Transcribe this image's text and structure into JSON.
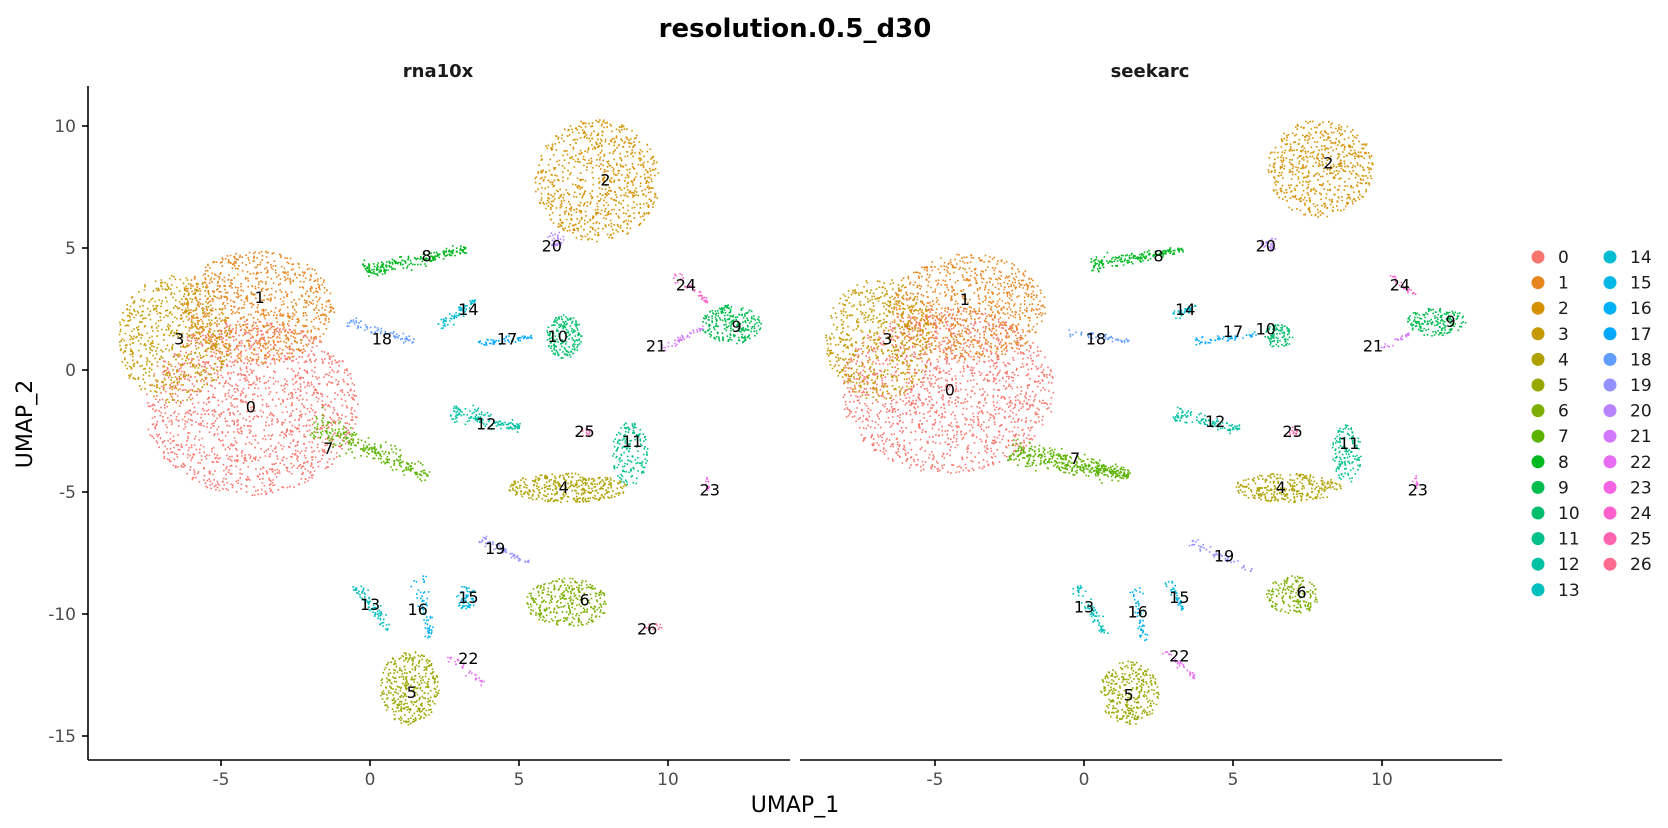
{
  "chart_data": {
    "type": "scatter",
    "title": "resolution.0.5_d30",
    "xlabel": "UMAP_1",
    "ylabel": "UMAP_2",
    "xlim": [
      -9.5,
      14
    ],
    "ylim": [
      -16.5,
      11.5
    ],
    "x_ticks": [
      -5,
      0,
      5,
      10
    ],
    "y_ticks": [
      10,
      5,
      0,
      -5,
      -10,
      -15
    ],
    "grid": false,
    "legend_position": "right",
    "legend_columns": 2,
    "cluster_colors": [
      "#F8766D",
      "#EA8331",
      "#D89000",
      "#C09B00",
      "#A3A500",
      "#7CAE00",
      "#39B600",
      "#00BB4E",
      "#00BF7D",
      "#00C1A3",
      "#00BFC4",
      "#00BAE0",
      "#00B0F6",
      "#35A2FF",
      "#9590FF",
      "#C77CFF",
      "#E76BF3",
      "#FA62DB",
      "#FF62BC",
      "#FF6C91",
      "#F8766D",
      "#E58700",
      "#C99800",
      "#A3A500",
      "#6BB100",
      "#00BA38",
      "#00BF7D"
    ],
    "legend": [
      "0",
      "1",
      "2",
      "3",
      "4",
      "5",
      "6",
      "7",
      "8",
      "9",
      "10",
      "11",
      "12",
      "13",
      "14",
      "15",
      "16",
      "17",
      "18",
      "19",
      "20",
      "21",
      "22",
      "23",
      "24",
      "25",
      "26"
    ],
    "legend_colors": [
      "#F8766D",
      "#E7851E",
      "#D69100",
      "#C49A00",
      "#AFA100",
      "#99A800",
      "#7CAE00",
      "#5BB300",
      "#00B81F",
      "#00BB4E",
      "#00BE6C",
      "#00C089",
      "#00C1A3",
      "#00BFBC",
      "#00BCD2",
      "#00B7E6",
      "#00B0F6",
      "#00A7FF",
      "#619CFF",
      "#9590FF",
      "#B983FF",
      "#D377FF",
      "#E76BF3",
      "#F564E3",
      "#FF61CC",
      "#FF64B0",
      "#FF6C91"
    ],
    "facets": [
      {
        "name": "rna10x",
        "clusters": [
          {
            "id": "0",
            "label_x": -4.0,
            "label_y": -1.5,
            "shape": "blob",
            "cx": -4.0,
            "cy": -1.5,
            "rx": 3.6,
            "ry": 3.6,
            "n": 1600
          },
          {
            "id": "1",
            "label_x": -3.7,
            "label_y": 3.0,
            "shape": "blob",
            "cx": -3.8,
            "cy": 2.6,
            "rx": 2.6,
            "ry": 2.3,
            "n": 900
          },
          {
            "id": "3",
            "label_x": -6.4,
            "label_y": 1.3,
            "shape": "blob",
            "cx": -6.6,
            "cy": 1.3,
            "rx": 1.9,
            "ry": 2.6,
            "n": 650
          },
          {
            "id": "2",
            "label_x": 7.9,
            "label_y": 7.8,
            "shape": "blob",
            "cx": 7.6,
            "cy": 7.8,
            "rx": 2.1,
            "ry": 2.5,
            "n": 800
          },
          {
            "id": "8",
            "label_x": 1.9,
            "label_y": 4.7,
            "shape": "streak",
            "x1": -0.2,
            "y1": 4.1,
            "x2": 3.2,
            "y2": 5.0,
            "w": 0.35,
            "n": 220
          },
          {
            "id": "20",
            "label_x": 6.1,
            "label_y": 5.1,
            "shape": "blob",
            "cx": 6.2,
            "cy": 5.4,
            "rx": 0.3,
            "ry": 0.3,
            "n": 30
          },
          {
            "id": "14",
            "label_x": 3.3,
            "label_y": 2.5,
            "shape": "streak",
            "x1": 2.3,
            "y1": 1.8,
            "x2": 3.5,
            "y2": 2.9,
            "w": 0.25,
            "n": 70
          },
          {
            "id": "18",
            "label_x": 0.4,
            "label_y": 1.3,
            "shape": "streak",
            "x1": -0.8,
            "y1": 2.0,
            "x2": 1.5,
            "y2": 1.2,
            "w": 0.25,
            "n": 70
          },
          {
            "id": "17",
            "label_x": 4.6,
            "label_y": 1.3,
            "shape": "streak",
            "x1": 3.6,
            "y1": 1.1,
            "x2": 5.4,
            "y2": 1.4,
            "w": 0.18,
            "n": 60
          },
          {
            "id": "10",
            "label_x": 6.3,
            "label_y": 1.4,
            "shape": "blob",
            "cx": 6.5,
            "cy": 1.4,
            "rx": 0.6,
            "ry": 0.9,
            "n": 180
          },
          {
            "id": "24",
            "label_x": 10.6,
            "label_y": 3.5,
            "shape": "streak",
            "x1": 10.2,
            "y1": 4.0,
            "x2": 11.3,
            "y2": 2.8,
            "w": 0.18,
            "n": 40
          },
          {
            "id": "21",
            "label_x": 9.6,
            "label_y": 1.0,
            "shape": "streak",
            "x1": 9.8,
            "y1": 0.9,
            "x2": 11.2,
            "y2": 1.8,
            "w": 0.18,
            "n": 40
          },
          {
            "id": "9",
            "label_x": 12.3,
            "label_y": 1.8,
            "shape": "blob",
            "cx": 12.1,
            "cy": 1.9,
            "rx": 1.0,
            "ry": 0.8,
            "n": 240
          },
          {
            "id": "7",
            "label_x": -1.4,
            "label_y": -3.2,
            "shape": "streak",
            "x1": -2.0,
            "y1": -2.2,
            "x2": 2.0,
            "y2": -4.3,
            "w": 0.6,
            "n": 260
          },
          {
            "id": "12",
            "label_x": 3.9,
            "label_y": -2.2,
            "shape": "streak",
            "x1": 2.7,
            "y1": -1.7,
            "x2": 5.0,
            "y2": -2.3,
            "w": 0.4,
            "n": 140
          },
          {
            "id": "25",
            "label_x": 7.2,
            "label_y": -2.5,
            "shape": "blob",
            "cx": 7.2,
            "cy": -2.5,
            "rx": 0.15,
            "ry": 0.2,
            "n": 12
          },
          {
            "id": "11",
            "label_x": 8.8,
            "label_y": -2.9,
            "shape": "blob",
            "cx": 8.7,
            "cy": -3.4,
            "rx": 0.6,
            "ry": 1.3,
            "n": 170
          },
          {
            "id": "4",
            "label_x": 6.5,
            "label_y": -4.8,
            "shape": "blob",
            "cx": 6.6,
            "cy": -4.8,
            "rx": 2.0,
            "ry": 0.6,
            "n": 360
          },
          {
            "id": "23",
            "label_x": 11.4,
            "label_y": -4.9,
            "shape": "blob",
            "cx": 11.3,
            "cy": -4.6,
            "rx": 0.1,
            "ry": 0.3,
            "n": 12
          },
          {
            "id": "19",
            "label_x": 4.2,
            "label_y": -7.3,
            "shape": "streak",
            "x1": 3.7,
            "y1": -6.9,
            "x2": 5.4,
            "y2": -7.9,
            "w": 0.2,
            "n": 60
          },
          {
            "id": "6",
            "label_x": 7.2,
            "label_y": -9.4,
            "shape": "blob",
            "cx": 6.6,
            "cy": -9.5,
            "rx": 1.4,
            "ry": 1.0,
            "n": 320
          },
          {
            "id": "26",
            "label_x": 9.3,
            "label_y": -10.6,
            "shape": "blob",
            "cx": 9.5,
            "cy": -10.5,
            "rx": 0.3,
            "ry": 0.15,
            "n": 14
          },
          {
            "id": "13",
            "label_x": 0.0,
            "label_y": -9.6,
            "shape": "streak",
            "x1": -0.5,
            "y1": -8.8,
            "x2": 0.6,
            "y2": -10.6,
            "w": 0.25,
            "n": 80
          },
          {
            "id": "16",
            "label_x": 1.6,
            "label_y": -9.8,
            "shape": "streak",
            "x1": 1.6,
            "y1": -8.4,
            "x2": 2.0,
            "y2": -11.0,
            "w": 0.25,
            "n": 60
          },
          {
            "id": "15",
            "label_x": 3.3,
            "label_y": -9.3,
            "shape": "blob",
            "cx": 3.2,
            "cy": -9.3,
            "rx": 0.35,
            "ry": 0.5,
            "n": 60
          },
          {
            "id": "22",
            "label_x": 3.3,
            "label_y": -11.8,
            "shape": "streak",
            "x1": 2.6,
            "y1": -11.7,
            "x2": 3.8,
            "y2": -12.8,
            "w": 0.2,
            "n": 30
          },
          {
            "id": "5",
            "label_x": 1.4,
            "label_y": -13.2,
            "shape": "blob",
            "cx": 1.3,
            "cy": -13.0,
            "rx": 1.0,
            "ry": 1.5,
            "n": 380
          }
        ]
      },
      {
        "name": "seekarc",
        "clusters": [
          {
            "id": "0",
            "label_x": -4.5,
            "label_y": -0.8,
            "shape": "blob",
            "cx": -4.6,
            "cy": -0.8,
            "rx": 3.6,
            "ry": 3.4,
            "n": 1500
          },
          {
            "id": "1",
            "label_x": -4.0,
            "label_y": 2.9,
            "shape": "blob",
            "cx": -3.9,
            "cy": 2.6,
            "rx": 2.6,
            "ry": 2.2,
            "n": 850
          },
          {
            "id": "3",
            "label_x": -6.6,
            "label_y": 1.3,
            "shape": "blob",
            "cx": -6.9,
            "cy": 1.3,
            "rx": 1.8,
            "ry": 2.5,
            "n": 620
          },
          {
            "id": "2",
            "label_x": 8.2,
            "label_y": 8.5,
            "shape": "blob",
            "cx": 7.9,
            "cy": 8.3,
            "rx": 1.8,
            "ry": 2.0,
            "n": 600
          },
          {
            "id": "8",
            "label_x": 2.5,
            "label_y": 4.7,
            "shape": "streak",
            "x1": 0.2,
            "y1": 4.3,
            "x2": 3.3,
            "y2": 5.0,
            "w": 0.3,
            "n": 180
          },
          {
            "id": "20",
            "label_x": 6.1,
            "label_y": 5.1,
            "shape": "blob",
            "cx": 6.2,
            "cy": 5.2,
            "rx": 0.3,
            "ry": 0.3,
            "n": 30
          },
          {
            "id": "14",
            "label_x": 3.4,
            "label_y": 2.5,
            "shape": "streak",
            "x1": 3.0,
            "y1": 2.2,
            "x2": 3.7,
            "y2": 2.7,
            "w": 0.2,
            "n": 40
          },
          {
            "id": "18",
            "label_x": 0.4,
            "label_y": 1.3,
            "shape": "streak",
            "x1": -0.6,
            "y1": 1.6,
            "x2": 1.5,
            "y2": 1.2,
            "w": 0.2,
            "n": 50
          },
          {
            "id": "17",
            "label_x": 5.0,
            "label_y": 1.6,
            "shape": "streak",
            "x1": 3.7,
            "y1": 1.2,
            "x2": 5.8,
            "y2": 1.5,
            "w": 0.18,
            "n": 50
          },
          {
            "id": "10",
            "label_x": 6.1,
            "label_y": 1.7,
            "shape": "blob",
            "cx": 6.5,
            "cy": 1.4,
            "rx": 0.5,
            "ry": 0.5,
            "n": 90
          },
          {
            "id": "24",
            "label_x": 10.6,
            "label_y": 3.5,
            "shape": "streak",
            "x1": 10.2,
            "y1": 3.9,
            "x2": 11.1,
            "y2": 3.1,
            "w": 0.15,
            "n": 25
          },
          {
            "id": "21",
            "label_x": 9.7,
            "label_y": 1.0,
            "shape": "streak",
            "x1": 9.9,
            "y1": 0.9,
            "x2": 10.9,
            "y2": 1.5,
            "w": 0.15,
            "n": 25
          },
          {
            "id": "9",
            "label_x": 12.3,
            "label_y": 2.0,
            "shape": "blob",
            "cx": 11.8,
            "cy": 2.0,
            "rx": 1.0,
            "ry": 0.6,
            "n": 180
          },
          {
            "id": "7",
            "label_x": -0.3,
            "label_y": -3.6,
            "shape": "streak",
            "x1": -2.5,
            "y1": -3.3,
            "x2": 1.5,
            "y2": -4.3,
            "w": 0.55,
            "n": 420
          },
          {
            "id": "12",
            "label_x": 4.4,
            "label_y": -2.1,
            "shape": "streak",
            "x1": 3.0,
            "y1": -1.8,
            "x2": 5.2,
            "y2": -2.4,
            "w": 0.35,
            "n": 110
          },
          {
            "id": "25",
            "label_x": 7.0,
            "label_y": -2.5,
            "shape": "blob",
            "cx": 7.0,
            "cy": -2.5,
            "rx": 0.15,
            "ry": 0.2,
            "n": 12
          },
          {
            "id": "11",
            "label_x": 8.9,
            "label_y": -3.0,
            "shape": "blob",
            "cx": 8.8,
            "cy": -3.4,
            "rx": 0.5,
            "ry": 1.2,
            "n": 140
          },
          {
            "id": "4",
            "label_x": 6.6,
            "label_y": -4.8,
            "shape": "blob",
            "cx": 6.8,
            "cy": -4.8,
            "rx": 1.8,
            "ry": 0.6,
            "n": 300
          },
          {
            "id": "23",
            "label_x": 11.2,
            "label_y": -4.9,
            "shape": "blob",
            "cx": 11.1,
            "cy": -4.6,
            "rx": 0.1,
            "ry": 0.3,
            "n": 12
          },
          {
            "id": "19",
            "label_x": 4.7,
            "label_y": -7.6,
            "shape": "streak",
            "x1": 3.5,
            "y1": -7.0,
            "x2": 5.6,
            "y2": -8.2,
            "w": 0.2,
            "n": 50
          },
          {
            "id": "6",
            "label_x": 7.3,
            "label_y": -9.1,
            "shape": "blob",
            "cx": 7.0,
            "cy": -9.2,
            "rx": 0.9,
            "ry": 0.8,
            "n": 170
          },
          {
            "id": "13",
            "label_x": 0.0,
            "label_y": -9.7,
            "shape": "streak",
            "x1": -0.3,
            "y1": -8.8,
            "x2": 0.7,
            "y2": -10.8,
            "w": 0.25,
            "n": 70
          },
          {
            "id": "16",
            "label_x": 1.8,
            "label_y": -9.9,
            "shape": "streak",
            "x1": 1.7,
            "y1": -8.9,
            "x2": 2.0,
            "y2": -11.2,
            "w": 0.2,
            "n": 50
          },
          {
            "id": "15",
            "label_x": 3.2,
            "label_y": -9.3,
            "shape": "streak",
            "x1": 2.8,
            "y1": -8.6,
            "x2": 3.3,
            "y2": -9.8,
            "w": 0.2,
            "n": 40
          },
          {
            "id": "22",
            "label_x": 3.2,
            "label_y": -11.7,
            "shape": "streak",
            "x1": 2.7,
            "y1": -11.5,
            "x2": 3.7,
            "y2": -12.6,
            "w": 0.2,
            "n": 30
          },
          {
            "id": "5",
            "label_x": 1.5,
            "label_y": -13.3,
            "shape": "blob",
            "cx": 1.5,
            "cy": -13.2,
            "rx": 1.0,
            "ry": 1.3,
            "n": 320
          }
        ]
      }
    ]
  }
}
